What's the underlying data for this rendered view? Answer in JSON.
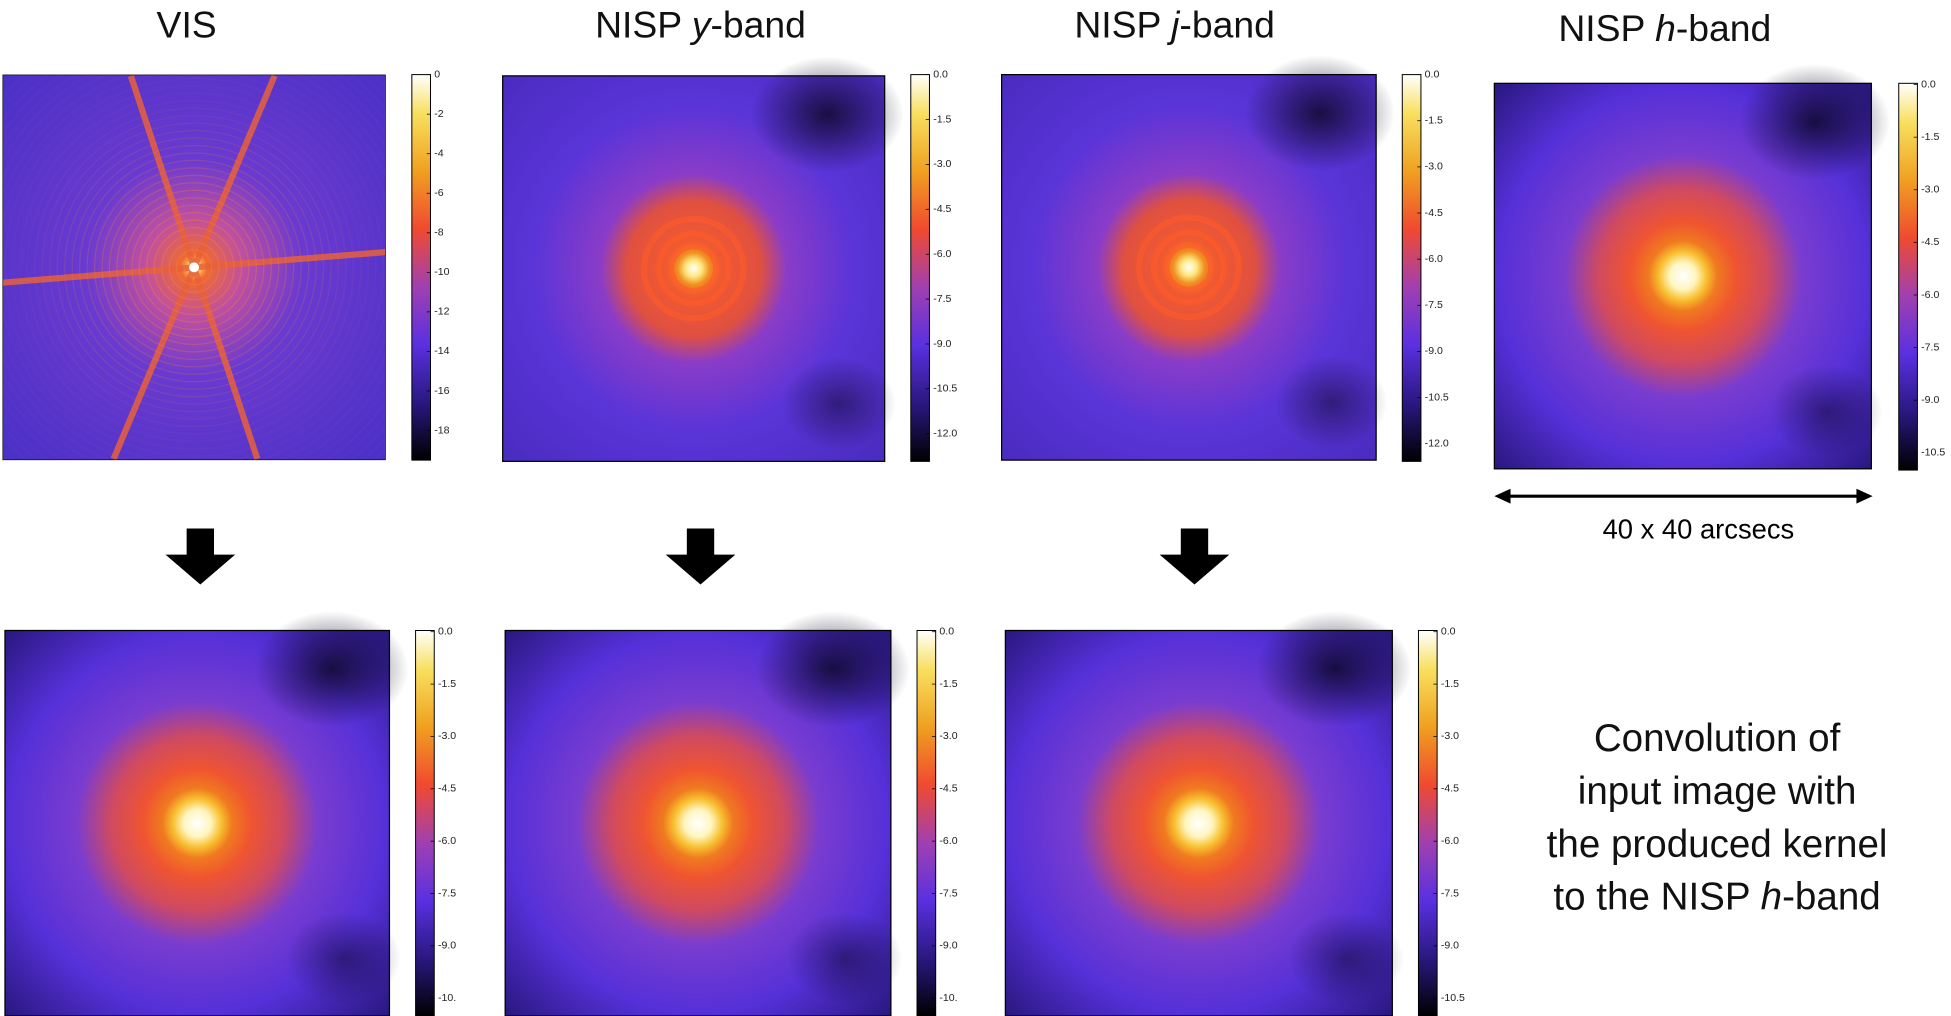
{
  "panels": [
    {
      "title": [
        {
          "text": "VIS"
        }
      ],
      "colorbar_ticks": [
        "0",
        "-2",
        "-4",
        "-6",
        "-8",
        "-10",
        "-12",
        "-14",
        "-16",
        "-18"
      ]
    },
    {
      "title": [
        {
          "text": "NISP "
        },
        {
          "text": "y",
          "italic": true
        },
        {
          "text": "-band"
        }
      ],
      "colorbar_ticks": [
        "0.0",
        "-1.5",
        "-3.0",
        "-4.5",
        "-6.0",
        "-7.5",
        "-9.0",
        "-10.5",
        "-12.0"
      ]
    },
    {
      "title": [
        {
          "text": "NISP "
        },
        {
          "text": "j",
          "italic": true
        },
        {
          "text": "-band"
        }
      ],
      "colorbar_ticks": [
        "0.0",
        "-1.5",
        "-3.0",
        "-4.5",
        "-6.0",
        "-7.5",
        "-9.0",
        "-10.5",
        "-12.0"
      ]
    },
    {
      "title": [
        {
          "text": "NISP "
        },
        {
          "text": "h",
          "italic": true
        },
        {
          "text": "-band"
        }
      ],
      "colorbar_ticks": [
        "0.0",
        "-1.5",
        "-3.0",
        "-4.5",
        "-6.0",
        "-7.5",
        "-9.0",
        "-10.5"
      ]
    }
  ],
  "scale_label": "40 x 40 arcsecs",
  "convolved": [
    {
      "colorbar_ticks": [
        "0.0",
        "-1.5",
        "-3.0",
        "-4.5",
        "-6.0",
        "-7.5",
        "-9.0",
        "-10."
      ]
    },
    {
      "colorbar_ticks": [
        "0.0",
        "-1.5",
        "-3.0",
        "-4.5",
        "-6.0",
        "-7.5",
        "-9.0",
        "-10."
      ]
    },
    {
      "colorbar_ticks": [
        "0.0",
        "-1.5",
        "-3.0",
        "-4.5",
        "-6.0",
        "-7.5",
        "-9.0",
        "-10.5"
      ]
    }
  ],
  "caption": [
    [
      {
        "text": "Convolution of"
      }
    ],
    [
      {
        "text": "input image with"
      }
    ],
    [
      {
        "text": "the produced kernel"
      }
    ],
    [
      {
        "text": "to the NISP "
      },
      {
        "text": "h",
        "italic": true
      },
      {
        "text": "-band"
      }
    ]
  ]
}
